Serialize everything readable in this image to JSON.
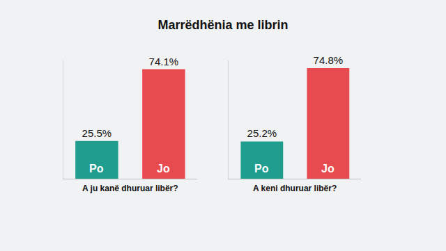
{
  "title": "Marrëdhënia me librin",
  "chart_data": [
    {
      "type": "bar",
      "categories": [
        "Po",
        "Jo"
      ],
      "values": [
        25.5,
        74.1
      ],
      "value_labels": [
        "25.5%",
        "74.1%"
      ],
      "colors": [
        "#1f9e8f",
        "#e84b4f"
      ],
      "xlabel": "A ju kanë dhuruar libër?",
      "ylim": [
        0,
        80
      ],
      "grid": false,
      "data_labels": true,
      "tick_labels": false
    },
    {
      "type": "bar",
      "categories": [
        "Po",
        "Jo"
      ],
      "values": [
        25.2,
        74.8
      ],
      "value_labels": [
        "25.2%",
        "74.8%"
      ],
      "colors": [
        "#1f9e8f",
        "#e84b4f"
      ],
      "xlabel": "A keni dhuruar libër?",
      "ylim": [
        0,
        80
      ],
      "grid": false,
      "data_labels": true,
      "tick_labels": false
    }
  ]
}
